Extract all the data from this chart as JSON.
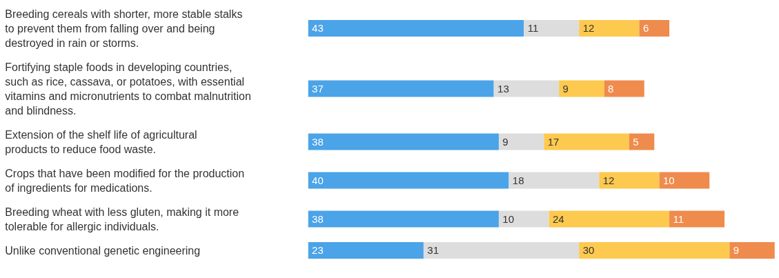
{
  "chart_data": {
    "type": "bar",
    "orientation": "horizontal",
    "stacked": true,
    "data_labels": true,
    "categories": [
      "Breeding cereals with shorter, more stable stalks to prevent them from falling over and being destroyed in rain or storms.",
      "Fortifying staple foods in developing countries, such as rice, cassava, or potatoes, with essential vitamins and micronutrients to combat malnutrition and blindness.",
      "Extension of the shelf life of agricultural products to reduce food waste.",
      "Crops that have been modified for the production of ingredients for medications.",
      "Breeding wheat with less gluten, making it more tolerable for allergic individuals.",
      "Unlike conventional genetic engineering"
    ],
    "series": [
      {
        "color": "#4ba3e8",
        "values": [
          43,
          37,
          38,
          40,
          38,
          23
        ]
      },
      {
        "color": "#dddddd",
        "values": [
          11,
          13,
          9,
          18,
          10,
          31
        ]
      },
      {
        "color": "#fdc94f",
        "values": [
          12,
          9,
          17,
          12,
          24,
          30
        ]
      },
      {
        "color": "#ef8b4c",
        "values": [
          6,
          8,
          5,
          10,
          11,
          9
        ]
      }
    ]
  }
}
